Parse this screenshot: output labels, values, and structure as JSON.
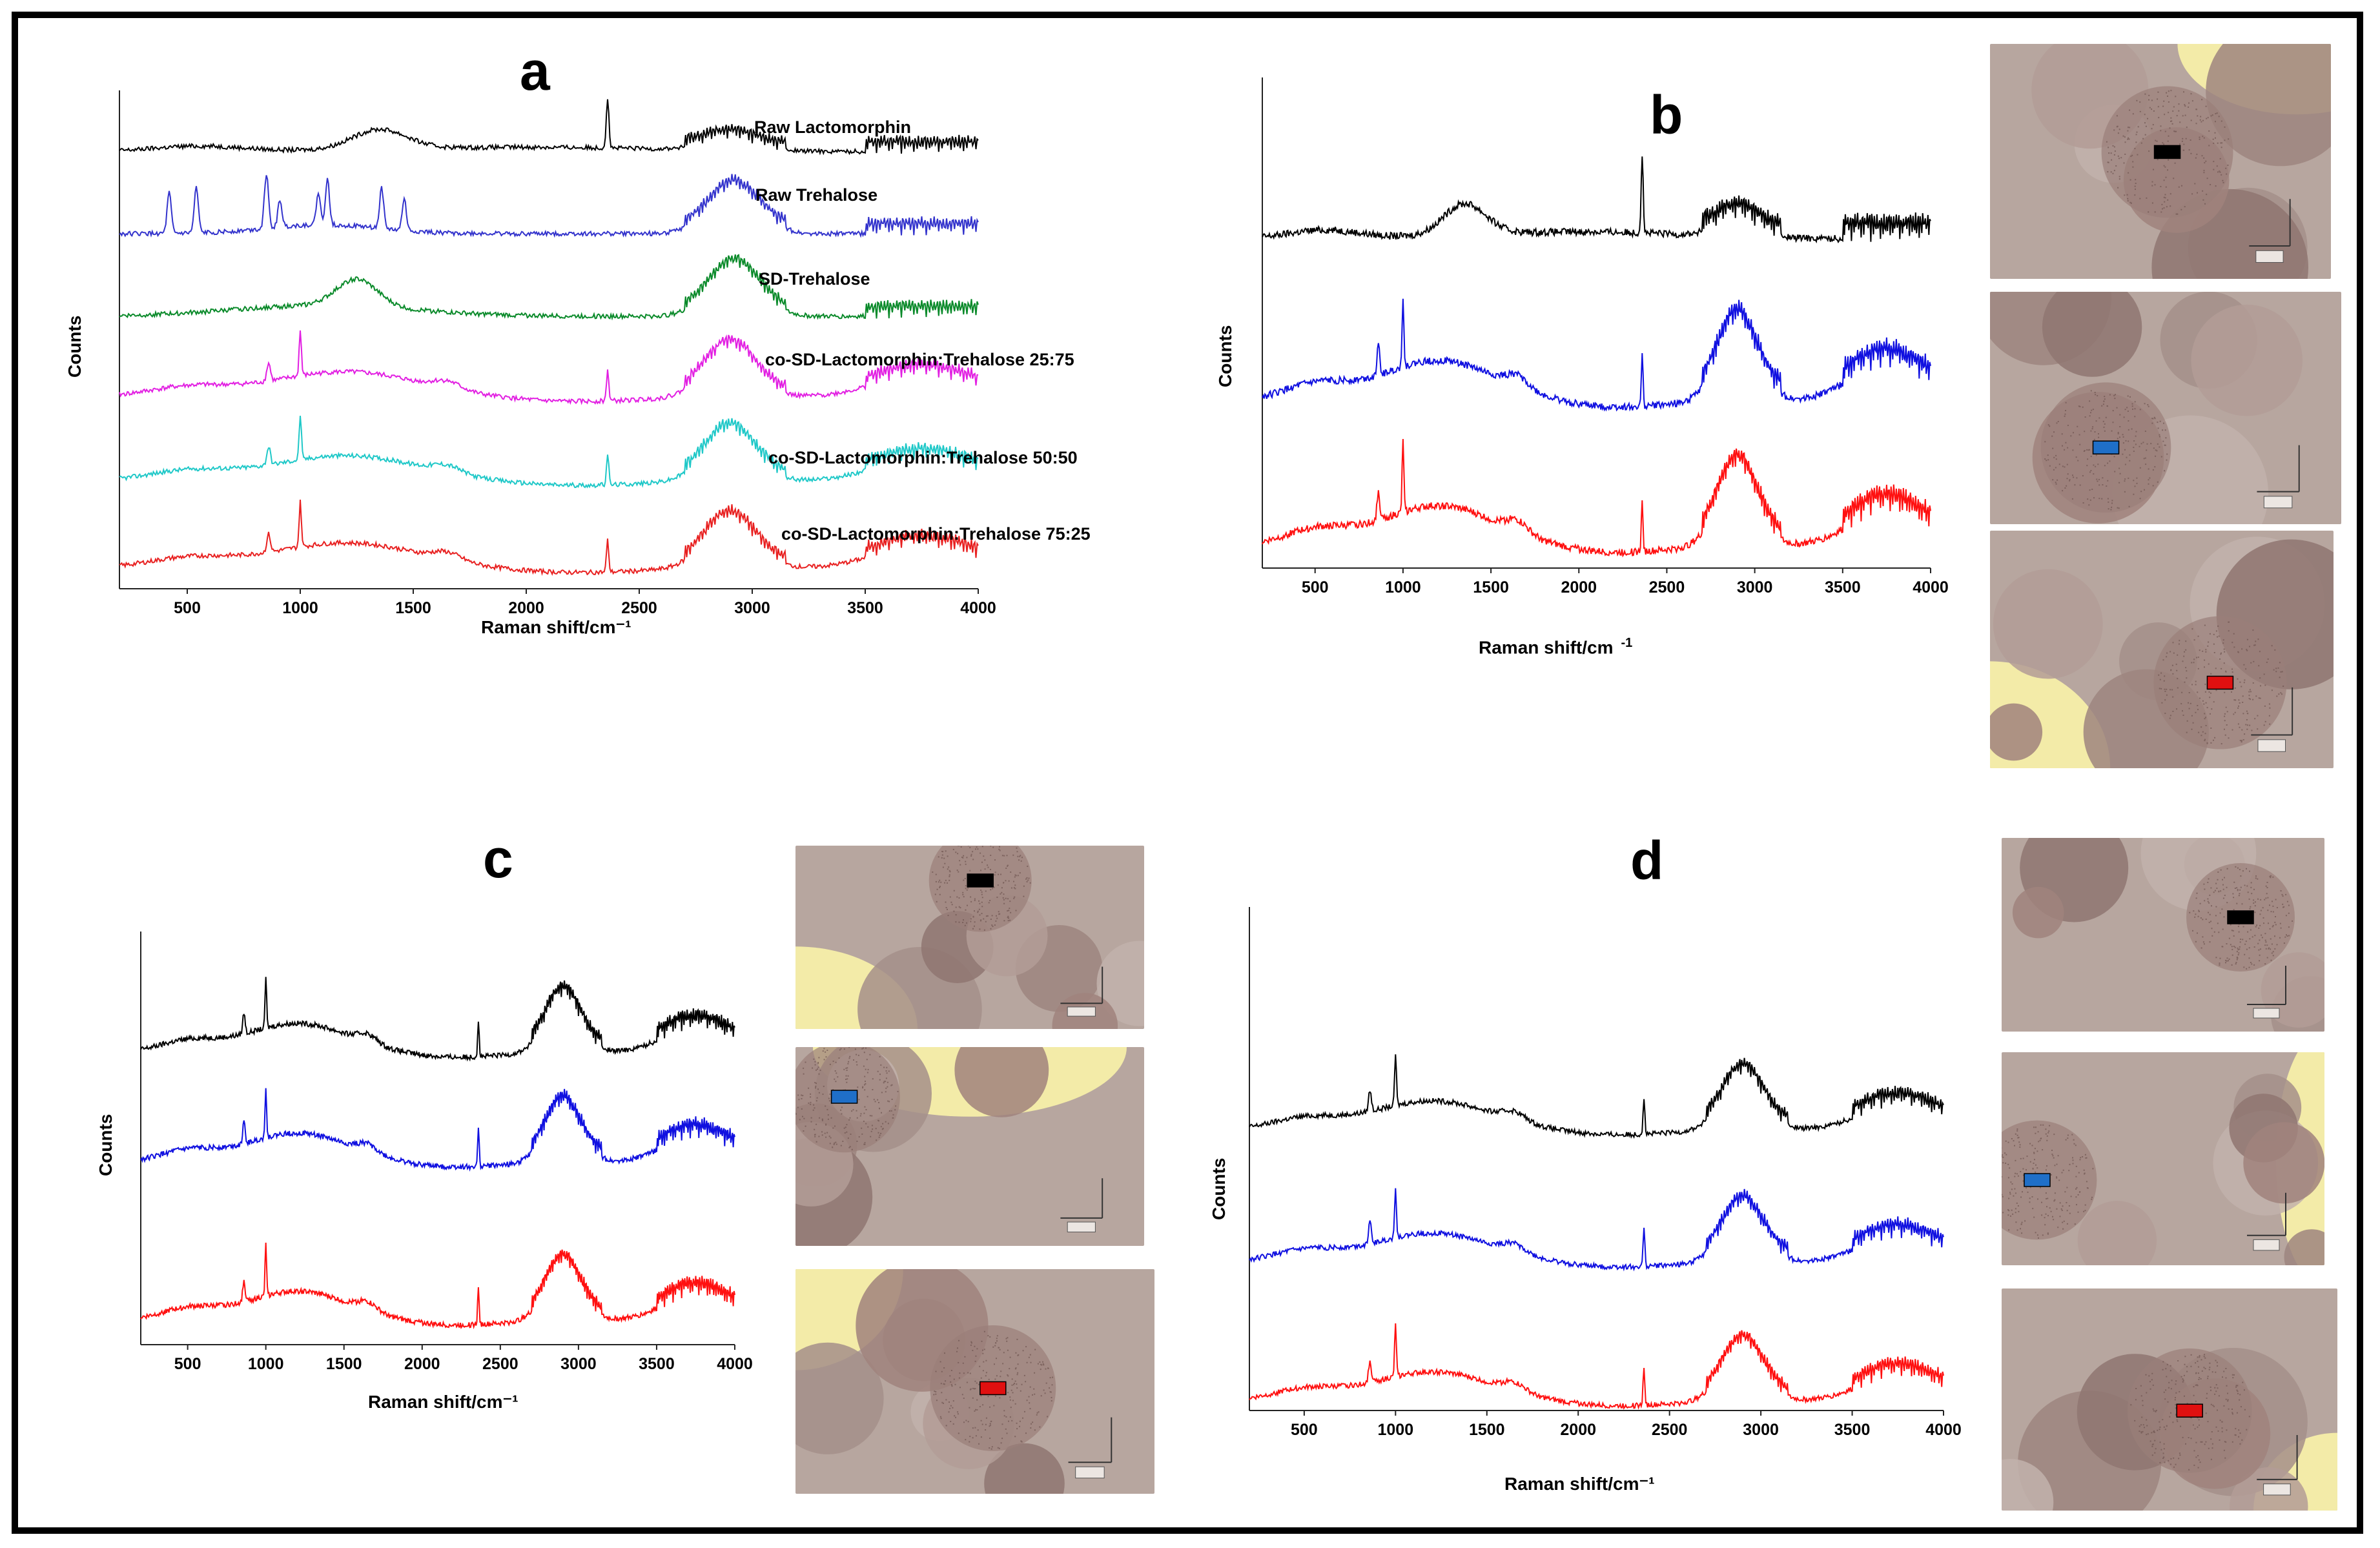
{
  "chart_data": [
    {
      "id": "a",
      "type": "line",
      "panel_label": "a",
      "xlabel": "Raman shift/cm⁻¹",
      "ylabel": "Counts",
      "xlim": [
        200,
        4000
      ],
      "xticks": [
        500,
        1000,
        1500,
        2000,
        2500,
        3000,
        3500,
        4000
      ],
      "series": [
        {
          "name": "Raw Lactomorphin",
          "color": "#000000",
          "kind": "lacto"
        },
        {
          "name": "Raw Trehalose",
          "color": "#3333cc",
          "kind": "treh"
        },
        {
          "name": "SD-Trehalose",
          "color": "#0a8a2a",
          "kind": "sdtreh"
        },
        {
          "name": "co-SD-Lactomorphin:Trehalose 25:75",
          "color": "#e21fe2",
          "kind": "mix"
        },
        {
          "name": "co-SD-Lactomorphin:Trehalose 50:50",
          "color": "#1fc8c8",
          "kind": "mix"
        },
        {
          "name": "co-SD-Lactomorphin:Trehalose 75:25",
          "color": "#e82020",
          "kind": "mix"
        }
      ]
    },
    {
      "id": "b",
      "type": "line",
      "panel_label": "b",
      "xlabel": "Raman shift/cm",
      "xlabel_sup": "-1",
      "ylabel": "Counts",
      "xlim": [
        200,
        4000
      ],
      "xticks": [
        500,
        1000,
        1500,
        2000,
        2500,
        3000,
        3500,
        4000
      ],
      "series": [
        {
          "name": "black",
          "color": "#000000",
          "kind": "lacto"
        },
        {
          "name": "blue",
          "color": "#1010e0",
          "kind": "mix"
        },
        {
          "name": "red",
          "color": "#ff1010",
          "kind": "mix"
        }
      ]
    },
    {
      "id": "c",
      "type": "line",
      "panel_label": "c",
      "xlabel": "Raman shift/cm⁻¹",
      "ylabel": "Counts",
      "xlim": [
        200,
        4000
      ],
      "xticks": [
        500,
        1000,
        1500,
        2000,
        2500,
        3000,
        3500,
        4000
      ],
      "series": [
        {
          "name": "black",
          "color": "#000000",
          "kind": "mix"
        },
        {
          "name": "blue",
          "color": "#1010e0",
          "kind": "mix"
        },
        {
          "name": "red",
          "color": "#ff1010",
          "kind": "mix"
        }
      ]
    },
    {
      "id": "d",
      "type": "line",
      "panel_label": "d",
      "xlabel": "Raman shift/cm⁻¹",
      "ylabel": "Counts",
      "xlim": [
        200,
        4000
      ],
      "xticks": [
        500,
        1000,
        1500,
        2000,
        2500,
        3000,
        3500,
        4000
      ],
      "series": [
        {
          "name": "black",
          "color": "#000000",
          "kind": "mix"
        },
        {
          "name": "blue",
          "color": "#1010e0",
          "kind": "mix"
        },
        {
          "name": "red",
          "color": "#ff1010",
          "kind": "mix"
        }
      ]
    }
  ],
  "micrographs": {
    "marker_colors": [
      "#000000",
      "#1f6fc8",
      "#e01010"
    ]
  }
}
